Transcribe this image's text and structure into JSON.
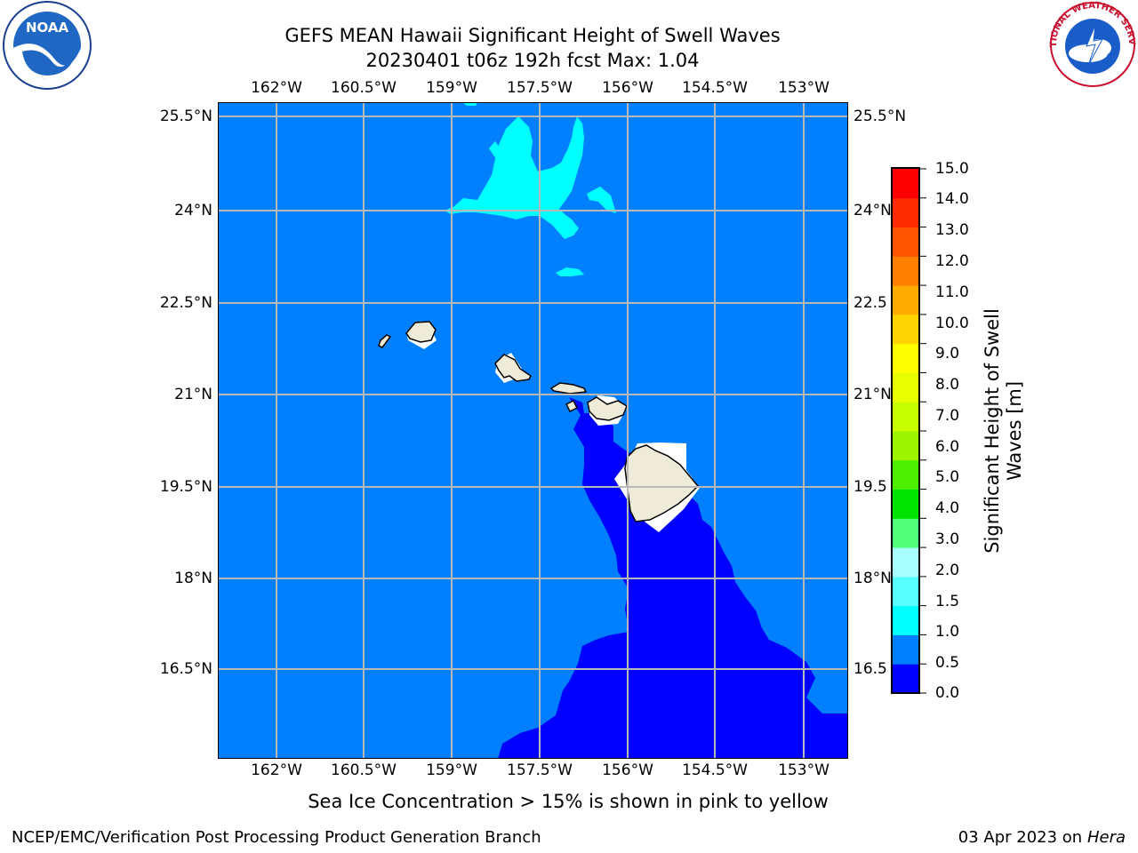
{
  "header": {
    "title_line1": "GEFS MEAN Hawaii Significant Height of Swell Waves",
    "title_line2": "20230401 t06z 192h fcst   Max: 1.04"
  },
  "logos": {
    "left": {
      "icon": "noaa-logo",
      "text": "NOAA"
    },
    "right": {
      "icon": "nws-logo",
      "text": "NATIONAL WEATHER SERVICE"
    }
  },
  "map": {
    "lon_labels": [
      "162°W",
      "160.5°W",
      "159°W",
      "157.5°W",
      "156°W",
      "154.5°W",
      "153°W"
    ],
    "lat_labels": [
      "25.5°N",
      "24°N",
      "22.5°N",
      "21°N",
      "19.5°N",
      "18°N",
      "16.5°N"
    ],
    "lat_labels_right": [
      "25.5°N",
      "24°N",
      "22.5",
      "21°N",
      "19.5",
      "18°N",
      "16.5"
    ],
    "colors": {
      "ocean_0_0_5": "#0000ff",
      "ocean_0_5_1_0": "#0080ff",
      "ocean_1_0_1_5": "#00ffff",
      "land": "#eeebd9",
      "grid": "#b8b8b8"
    }
  },
  "colorbar": {
    "title_line1": "Significant Height of Swell",
    "title_line2": "Waves [m]",
    "ticks": [
      "0.0",
      "0.5",
      "1.0",
      "1.5",
      "2.0",
      "3.0",
      "4.0",
      "5.0",
      "6.0",
      "7.0",
      "8.0",
      "9.0",
      "10.0",
      "11.0",
      "12.0",
      "13.0",
      "14.0",
      "15.0"
    ],
    "colors": [
      "#0000ff",
      "#0080ff",
      "#00ffff",
      "#57ffff",
      "#a8ffff",
      "#52ff7a",
      "#00e200",
      "#4dee00",
      "#9df400",
      "#c8ff00",
      "#e8ff00",
      "#ffff00",
      "#ffd400",
      "#ffab00",
      "#ff8000",
      "#ff5500",
      "#ff2a00",
      "#ff0000"
    ]
  },
  "footer": {
    "note": "Sea Ice Concentration > 15% is shown in pink to yellow",
    "left": "NCEP/EMC/Verification Post Processing Product Generation Branch",
    "date": "03 Apr 2023 on ",
    "machine": "Hera"
  }
}
